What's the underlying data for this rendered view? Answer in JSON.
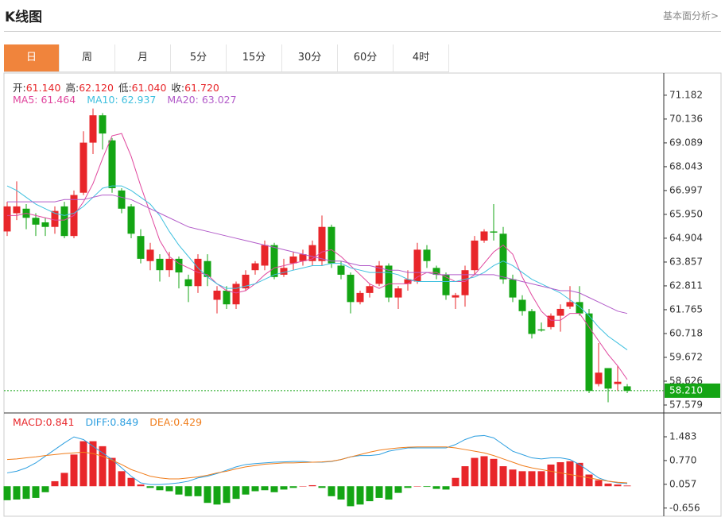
{
  "header": {
    "title": "K线图",
    "link": "基本面分析>"
  },
  "tabs": [
    "日",
    "周",
    "月",
    "5分",
    "15分",
    "30分",
    "60分",
    "4时"
  ],
  "active_tab": 0,
  "quote": [
    {
      "label": "开:",
      "value": "61.140"
    },
    {
      "label": "高:",
      "value": "62.120"
    },
    {
      "label": "低:",
      "value": "61.040"
    },
    {
      "label": "收:",
      "value": "61.720"
    }
  ],
  "chart_data": [
    {
      "type": "candlestick",
      "up_color": "#e8262a",
      "down_color": "#14a514",
      "open": [
        65.2,
        66.0,
        66.2,
        65.8,
        65.6,
        65.4,
        66.3,
        65.0,
        66.9,
        69.1,
        70.3,
        69.2,
        67.0,
        66.3,
        65.0,
        63.9,
        64.0,
        63.5,
        64.0,
        63.1,
        62.8,
        63.9,
        62.2,
        62.6,
        62.0,
        62.7,
        63.5,
        63.7,
        64.6,
        63.3,
        63.8,
        63.9,
        63.9,
        63.9,
        65.4,
        63.7,
        63.3,
        62.1,
        62.5,
        62.9,
        63.7,
        62.3,
        62.9,
        63.0,
        64.4,
        63.6,
        63.3,
        62.3,
        62.4,
        63.5,
        64.8,
        65.2,
        65.1,
        63.1,
        62.2,
        61.7,
        60.9,
        61.0,
        61.5,
        61.9,
        62.1,
        61.6,
        58.5,
        59.2,
        58.5,
        58.4
      ],
      "high": [
        66.5,
        67.4,
        66.4,
        66.0,
        65.8,
        66.3,
        66.5,
        67.0,
        69.6,
        70.6,
        70.4,
        69.3,
        67.1,
        66.4,
        65.3,
        64.7,
        64.2,
        64.3,
        64.1,
        63.3,
        64.2,
        64.2,
        62.8,
        62.8,
        63.0,
        63.5,
        63.9,
        64.8,
        64.7,
        64.0,
        64.3,
        64.4,
        64.8,
        65.9,
        65.5,
        63.9,
        63.4,
        62.6,
        62.9,
        63.9,
        63.8,
        62.8,
        63.5,
        64.7,
        64.6,
        63.7,
        63.4,
        62.5,
        63.7,
        65.0,
        65.3,
        66.4,
        65.4,
        63.3,
        62.4,
        61.8,
        61.2,
        61.6,
        62.0,
        62.8,
        62.8,
        61.8,
        60.3,
        59.2,
        59.3,
        58.5
      ],
      "low": [
        65.0,
        65.7,
        65.3,
        65.0,
        65.0,
        65.1,
        64.9,
        64.9,
        66.8,
        68.6,
        68.8,
        66.9,
        66.0,
        64.9,
        63.8,
        63.5,
        63.0,
        63.2,
        62.7,
        62.1,
        62.5,
        62.8,
        61.6,
        61.8,
        61.8,
        62.6,
        63.3,
        63.5,
        63.1,
        63.2,
        63.5,
        63.7,
        63.7,
        63.7,
        63.6,
        63.1,
        61.6,
        62.0,
        62.3,
        62.8,
        62.1,
        61.8,
        62.6,
        62.9,
        63.6,
        63.1,
        62.2,
        61.8,
        61.9,
        63.3,
        64.7,
        64.8,
        62.9,
        62.1,
        61.5,
        60.5,
        60.8,
        60.9,
        60.8,
        61.8,
        61.5,
        58.1,
        58.4,
        57.7,
        58.2,
        58.1
      ],
      "close": [
        66.3,
        66.3,
        65.8,
        65.5,
        65.4,
        66.1,
        65.0,
        66.8,
        69.1,
        70.3,
        69.5,
        67.1,
        66.2,
        65.1,
        64.0,
        64.4,
        63.5,
        64.0,
        63.4,
        62.8,
        64.0,
        63.2,
        62.6,
        62.0,
        62.9,
        63.3,
        63.8,
        64.6,
        63.2,
        63.6,
        64.1,
        64.2,
        64.6,
        65.4,
        63.8,
        63.3,
        62.1,
        62.5,
        62.8,
        63.7,
        62.3,
        62.7,
        63.1,
        64.4,
        63.9,
        63.3,
        62.4,
        62.4,
        63.5,
        64.8,
        65.2,
        65.15,
        63.1,
        62.3,
        61.7,
        60.7,
        60.85,
        61.5,
        61.8,
        62.1,
        61.6,
        58.2,
        59.0,
        58.3,
        58.6,
        58.2
      ],
      "series": [
        {
          "name": "MA5",
          "label": "MA5: 61.464",
          "color": "#e0479e",
          "values": [
            65.9,
            65.9,
            66.0,
            65.9,
            65.8,
            65.7,
            65.7,
            65.9,
            66.5,
            67.3,
            68.4,
            69.4,
            69.5,
            68.5,
            67.2,
            66.0,
            64.8,
            64.1,
            63.8,
            63.6,
            63.4,
            63.3,
            62.9,
            62.6,
            62.5,
            62.6,
            62.9,
            63.3,
            63.6,
            63.7,
            63.8,
            63.9,
            64.0,
            64.3,
            64.4,
            64.1,
            63.7,
            63.3,
            62.9,
            62.7,
            62.9,
            62.9,
            62.9,
            63.2,
            63.4,
            63.4,
            63.2,
            63.0,
            63.0,
            63.3,
            63.8,
            64.3,
            64.6,
            64.2,
            63.2,
            62.4,
            61.7,
            61.3,
            61.3,
            61.6,
            61.6,
            61.0,
            60.4,
            59.8,
            59.3,
            58.7
          ]
        },
        {
          "name": "MA10",
          "label": "MA10: 62.937",
          "color": "#3fc0df",
          "values": [
            67.2,
            67.0,
            66.7,
            66.4,
            66.2,
            66.0,
            65.9,
            66.0,
            66.3,
            66.7,
            67.1,
            67.2,
            67.2,
            67.0,
            66.7,
            66.4,
            65.9,
            65.2,
            64.6,
            64.1,
            63.6,
            63.2,
            62.9,
            62.7,
            62.7,
            62.8,
            62.9,
            63.1,
            63.3,
            63.4,
            63.5,
            63.6,
            63.7,
            63.7,
            63.8,
            63.8,
            63.6,
            63.5,
            63.4,
            63.4,
            63.4,
            63.3,
            63.1,
            63.0,
            63.0,
            63.0,
            63.0,
            63.0,
            63.1,
            63.2,
            63.4,
            63.7,
            63.9,
            63.7,
            63.4,
            63.1,
            62.9,
            62.7,
            62.5,
            62.2,
            61.9,
            61.5,
            61.0,
            60.6,
            60.3,
            60.0
          ]
        },
        {
          "name": "MA20",
          "label": "MA20: 63.027",
          "color": "#b25bc9",
          "values": [
            66.5,
            66.5,
            66.5,
            66.5,
            66.5,
            66.5,
            66.6,
            66.6,
            66.6,
            66.7,
            66.8,
            66.8,
            66.7,
            66.6,
            66.4,
            66.2,
            66.0,
            65.8,
            65.6,
            65.4,
            65.3,
            65.2,
            65.1,
            65.0,
            64.9,
            64.8,
            64.7,
            64.6,
            64.5,
            64.4,
            64.3,
            64.2,
            64.1,
            64.0,
            63.9,
            63.9,
            63.8,
            63.7,
            63.7,
            63.6,
            63.5,
            63.5,
            63.4,
            63.4,
            63.4,
            63.3,
            63.3,
            63.3,
            63.3,
            63.3,
            63.3,
            63.3,
            63.2,
            63.1,
            63.0,
            62.9,
            62.8,
            62.7,
            62.6,
            62.6,
            62.5,
            62.3,
            62.1,
            61.9,
            61.7,
            61.6
          ]
        }
      ],
      "current_price": {
        "value": 58.21,
        "label": "58.210"
      },
      "current_color": "#14a514",
      "ylim": [
        57.3,
        72.12
      ],
      "yticks": [
        71.182,
        70.136,
        69.089,
        68.043,
        66.997,
        {
          "value": 65.95,
          "label": "65.950"
        },
        64.904,
        63.857,
        62.811,
        61.765,
        60.718,
        59.672,
        58.626,
        57.579
      ]
    },
    {
      "type": "macd",
      "pos_color": "#e8262a",
      "neg_color": "#14a514",
      "values": [
        -0.42,
        -0.4,
        -0.38,
        -0.35,
        -0.18,
        0.15,
        0.4,
        0.95,
        1.35,
        1.35,
        1.2,
        0.85,
        0.45,
        0.25,
        0.05,
        -0.05,
        -0.12,
        -0.15,
        -0.25,
        -0.3,
        -0.3,
        -0.5,
        -0.55,
        -0.5,
        -0.38,
        -0.25,
        -0.15,
        -0.12,
        -0.18,
        -0.1,
        -0.05,
        0.0,
        0.03,
        -0.05,
        -0.3,
        -0.4,
        -0.6,
        -0.55,
        -0.45,
        -0.35,
        -0.4,
        -0.2,
        -0.05,
        0.0,
        -0.02,
        -0.08,
        -0.1,
        0.25,
        0.6,
        0.85,
        0.9,
        0.82,
        0.6,
        0.5,
        0.45,
        0.45,
        0.45,
        0.65,
        0.72,
        0.75,
        0.7,
        0.35,
        0.18,
        0.08,
        0.05,
        0.02
      ],
      "legend": [
        {
          "label": "MACD:0.841",
          "color": "#e8262a"
        },
        {
          "label": "DIFF:0.849",
          "color": "#2d9fe0"
        },
        {
          "label": "DEA:0.429",
          "color": "#f07d1b"
        }
      ],
      "series": [
        {
          "name": "DIFF",
          "color": "#2d9fe0",
          "values": [
            0.4,
            0.45,
            0.55,
            0.7,
            0.9,
            1.1,
            1.3,
            1.48,
            1.4,
            1.2,
            1.0,
            0.8,
            0.55,
            0.3,
            0.1,
            0.05,
            0.05,
            0.07,
            0.1,
            0.15,
            0.25,
            0.3,
            0.38,
            0.48,
            0.58,
            0.65,
            0.68,
            0.7,
            0.72,
            0.73,
            0.74,
            0.74,
            0.72,
            0.72,
            0.74,
            0.8,
            0.88,
            0.92,
            0.92,
            0.95,
            1.05,
            1.1,
            1.15,
            1.15,
            1.15,
            1.15,
            1.15,
            1.25,
            1.4,
            1.5,
            1.52,
            1.45,
            1.25,
            1.05,
            0.95,
            0.85,
            0.82,
            0.85,
            0.85,
            0.8,
            0.65,
            0.45,
            0.25,
            0.15,
            0.1,
            0.08
          ]
        },
        {
          "name": "DEA",
          "color": "#f07d1b",
          "values": [
            0.8,
            0.82,
            0.85,
            0.88,
            0.92,
            0.95,
            0.98,
            1.0,
            1.02,
            0.98,
            0.9,
            0.78,
            0.65,
            0.5,
            0.4,
            0.3,
            0.25,
            0.22,
            0.22,
            0.25,
            0.28,
            0.33,
            0.4,
            0.45,
            0.52,
            0.58,
            0.62,
            0.66,
            0.68,
            0.7,
            0.7,
            0.71,
            0.72,
            0.73,
            0.75,
            0.8,
            0.88,
            0.95,
            1.02,
            1.08,
            1.12,
            1.15,
            1.17,
            1.18,
            1.18,
            1.18,
            1.18,
            1.15,
            1.1,
            1.05,
            1.0,
            0.92,
            0.82,
            0.72,
            0.62,
            0.55,
            0.5,
            0.45,
            0.4,
            0.35,
            0.3,
            0.25,
            0.2,
            0.15,
            0.12,
            0.1
          ]
        }
      ],
      "ylim": [
        -0.9,
        2.15
      ],
      "yticks": [
        1.483,
        {
          "value": 0.77,
          "label": "0.770"
        },
        0.057,
        -0.656
      ]
    }
  ]
}
